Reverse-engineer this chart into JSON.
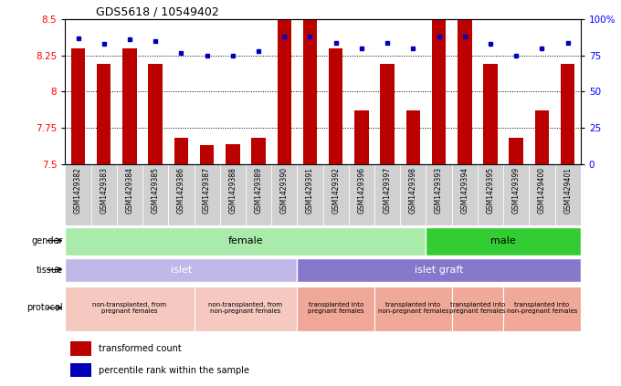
{
  "title": "GDS5618 / 10549402",
  "samples": [
    "GSM1429382",
    "GSM1429383",
    "GSM1429384",
    "GSM1429385",
    "GSM1429386",
    "GSM1429387",
    "GSM1429388",
    "GSM1429389",
    "GSM1429390",
    "GSM1429391",
    "GSM1429392",
    "GSM1429396",
    "GSM1429397",
    "GSM1429398",
    "GSM1429393",
    "GSM1429394",
    "GSM1429395",
    "GSM1429399",
    "GSM1429400",
    "GSM1429401"
  ],
  "red_values": [
    8.3,
    8.19,
    8.3,
    8.19,
    7.68,
    7.63,
    7.64,
    7.68,
    8.5,
    8.5,
    8.3,
    7.87,
    8.19,
    7.87,
    8.5,
    8.5,
    8.19,
    7.68,
    7.87,
    8.19
  ],
  "blue_values": [
    87,
    83,
    86,
    85,
    77,
    75,
    75,
    78,
    88,
    88,
    84,
    80,
    84,
    80,
    88,
    88,
    83,
    75,
    80,
    84
  ],
  "ylim_left": [
    7.5,
    8.5
  ],
  "ylim_right": [
    0,
    100
  ],
  "yticks_left": [
    7.5,
    7.75,
    8.0,
    8.25,
    8.5
  ],
  "ytick_labels_left": [
    "7.5",
    "7.75",
    "8",
    "8.25",
    "8.5"
  ],
  "yticks_right": [
    0,
    25,
    50,
    75,
    100
  ],
  "ytick_labels_right": [
    "0",
    "25",
    "50",
    "75",
    "100%"
  ],
  "gender_groups": [
    {
      "label": "female",
      "start": 0,
      "end": 14,
      "color": "#aaeaaa"
    },
    {
      "label": "male",
      "start": 14,
      "end": 20,
      "color": "#33cc33"
    }
  ],
  "tissue_groups": [
    {
      "label": "islet",
      "start": 0,
      "end": 9,
      "color": "#c0b8e8"
    },
    {
      "label": "islet graft",
      "start": 9,
      "end": 20,
      "color": "#8878cc"
    }
  ],
  "protocol_groups": [
    {
      "label": "non-transplanted, from\npregnant females",
      "start": 0,
      "end": 5,
      "color": "#f5c8c0"
    },
    {
      "label": "non-transplanted, from\nnon-pregnant females",
      "start": 5,
      "end": 9,
      "color": "#f5c8c0"
    },
    {
      "label": "transplanted into\npregnant females",
      "start": 9,
      "end": 12,
      "color": "#f0a898"
    },
    {
      "label": "transplanted into\nnon-pregnant females",
      "start": 12,
      "end": 15,
      "color": "#f0a898"
    },
    {
      "label": "transplanted into\npregnant females",
      "start": 15,
      "end": 17,
      "color": "#f0a898"
    },
    {
      "label": "transplanted into\nnon-pregnant females",
      "start": 17,
      "end": 20,
      "color": "#f0a898"
    }
  ],
  "bar_color": "#bb0000",
  "dot_color": "#0000bb",
  "background_color": "#ffffff",
  "plot_bg_color": "#ffffff",
  "xtick_bg_color": "#d0d0d0",
  "legend_items": [
    "transformed count",
    "percentile rank within the sample"
  ],
  "grid_color": "#000000",
  "grid_lines": [
    7.75,
    8.0,
    8.25
  ]
}
